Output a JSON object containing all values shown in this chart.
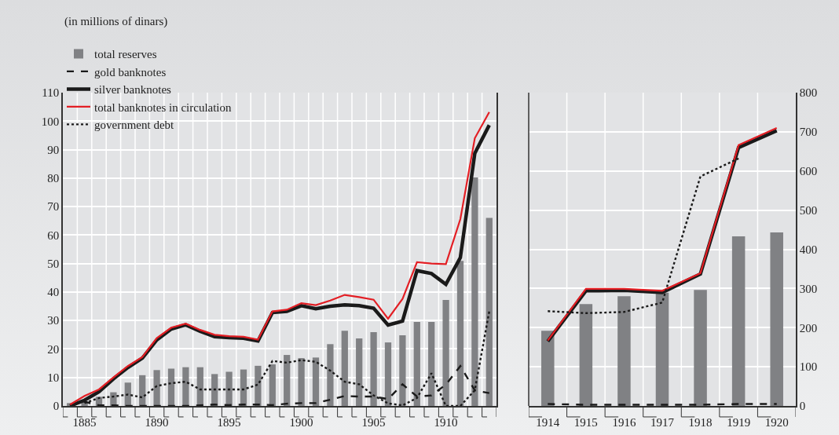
{
  "chart_data": [
    {
      "type": "line",
      "subtitle": "(in millions of dinars)",
      "categories": [
        null,
        "1885",
        null,
        null,
        null,
        null,
        "1890",
        null,
        null,
        null,
        null,
        "1895",
        null,
        null,
        null,
        null,
        "1900",
        null,
        null,
        null,
        null,
        "1905",
        null,
        null,
        null,
        null,
        "1910",
        null,
        null,
        null
      ],
      "series": [
        {
          "name": "total reserves",
          "type": "bar",
          "color": "#808184",
          "values": [
            1,
            1.5,
            3.2,
            4.8,
            8.2,
            10.8,
            12.6,
            13.1,
            13.6,
            13.6,
            11.2,
            12,
            12.8,
            14.1,
            14.6,
            17.9,
            16.8,
            17,
            21.7,
            26.4,
            23.7,
            25.9,
            22.3,
            24.8,
            29.5,
            29.5,
            37.2,
            50.9,
            80.2,
            66
          ]
        },
        {
          "name": "gold banknotes",
          "color": "#1a1a1a",
          "line_style": "dashed",
          "values": [
            0,
            1.5,
            0.2,
            0.2,
            0,
            0,
            0,
            0,
            0,
            0.2,
            0.5,
            0.3,
            0.5,
            0.5,
            0.3,
            0.8,
            1,
            1,
            2.2,
            3.5,
            3.3,
            3.3,
            2.4,
            7.6,
            3.3,
            3.7,
            7.5,
            14,
            5.5,
            4.5
          ]
        },
        {
          "name": "silver banknotes",
          "color": "#1a1a1a",
          "line_style": "solid",
          "values": [
            0,
            2,
            5,
            9.5,
            13.5,
            16.8,
            23.2,
            27,
            28.5,
            26.2,
            24.3,
            24,
            23.8,
            22.8,
            32.8,
            33.2,
            35.2,
            34.1,
            35,
            35.5,
            35.2,
            34.3,
            28.4,
            29.8,
            47.5,
            46.5,
            42.7,
            52.1,
            88.7,
            98.6
          ]
        },
        {
          "name": "total banknotes in circulation",
          "color": "#e31e24",
          "line_style": "solid",
          "values": [
            0.5,
            3.5,
            5.8,
            10,
            14,
            17.2,
            23.8,
            27.5,
            28.9,
            26.7,
            25,
            24.5,
            24.3,
            23.3,
            33.2,
            33.8,
            36.1,
            35.4,
            37,
            39,
            38.2,
            37.3,
            30.6,
            37.6,
            50.5,
            50,
            49.8,
            65.6,
            94,
            103.2
          ]
        },
        {
          "name": "government debt",
          "color": "#1a1a1a",
          "line_style": "dotted",
          "values": [
            null,
            1,
            2.8,
            3.3,
            4,
            3,
            7,
            8,
            8.5,
            5.8,
            5.8,
            5.8,
            5.8,
            7.5,
            15.8,
            15.2,
            16.1,
            15.5,
            12.4,
            8.5,
            7.6,
            3.7,
            0.9,
            0.2,
            2.8,
            11.5,
            0,
            0,
            5.5,
            33.2
          ]
        }
      ],
      "ylim": [
        0,
        110
      ],
      "yticks": [
        0,
        10,
        20,
        30,
        40,
        50,
        60,
        70,
        80,
        90,
        100,
        110
      ],
      "grid": true,
      "legend": "top left",
      "marker": "none"
    },
    {
      "type": "line",
      "categories": [
        "1914",
        "1915",
        "1916",
        "1917",
        "1918",
        "1919",
        "1920"
      ],
      "series": [
        {
          "type": "bar",
          "color": "#808184",
          "axis": "y2",
          "values": [
            192,
            260,
            280,
            289,
            296,
            433,
            443
          ]
        },
        {
          "color": "#1a1a1a",
          "line_style": "dashed",
          "axis": "y2",
          "values": [
            5,
            3,
            3,
            3,
            3,
            5,
            5
          ]
        },
        {
          "color": "#1a1a1a",
          "line_style": "solid",
          "axis": "y2",
          "values": [
            165,
            294,
            295,
            290,
            337,
            660,
            703
          ]
        },
        {
          "color": "#e31e24",
          "line_style": "solid",
          "axis": "y2",
          "values": [
            167,
            299,
            299,
            294,
            339,
            666,
            710
          ]
        },
        {
          "color": "#1a1a1a",
          "line_style": "dotted",
          "axis": "y2",
          "values": [
            242,
            237,
            240,
            264,
            586,
            632,
            null
          ]
        }
      ],
      "y2lim": [
        0,
        800
      ],
      "y2ticks": [
        0,
        100,
        200,
        300,
        400,
        500,
        600,
        700,
        800
      ],
      "grid": true,
      "legend": false,
      "marker": "none"
    }
  ]
}
